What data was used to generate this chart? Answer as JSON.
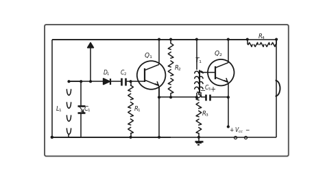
{
  "line_color": "#1a1a1a",
  "line_width": 1.1,
  "fig_w": 4.74,
  "fig_h": 2.62,
  "border_lw": 1.4,
  "dot_r": 1.8
}
